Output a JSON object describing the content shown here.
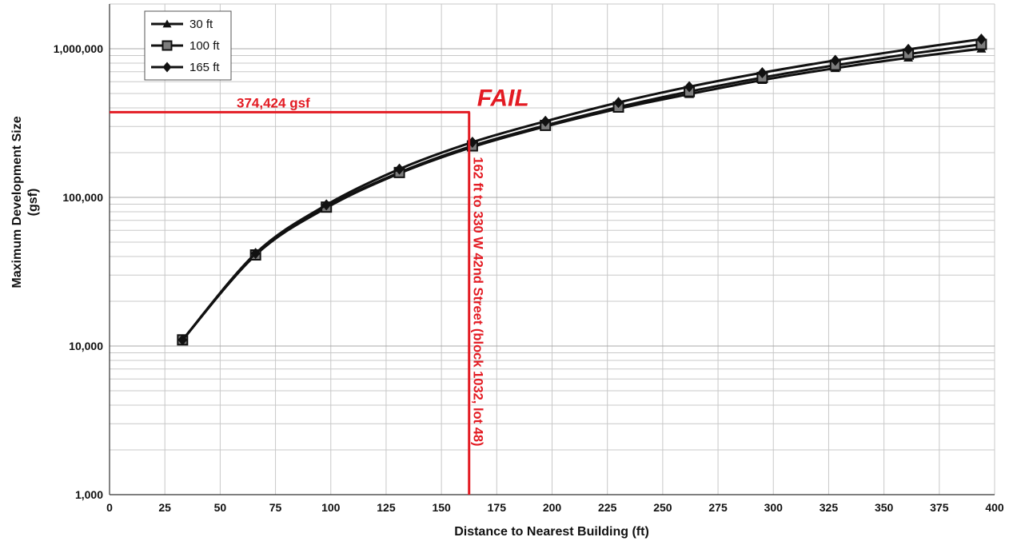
{
  "chart_data": {
    "type": "line",
    "title": "",
    "xlabel": "Distance to Nearest Building (ft)",
    "ylabel": "Maximum Development Size",
    "ylabel_unit": "(gsf)",
    "x_scale": "linear",
    "y_scale": "log",
    "xlim": [
      0,
      400
    ],
    "ylim": [
      1000,
      2000000
    ],
    "x_ticks": [
      0,
      25,
      50,
      75,
      100,
      125,
      150,
      175,
      200,
      225,
      250,
      275,
      300,
      325,
      350,
      375,
      400
    ],
    "x_tick_labels": [
      "0",
      "25",
      "50",
      "75",
      "100",
      "125",
      "150",
      "175",
      "200",
      "225",
      "250",
      "275",
      "300",
      "325",
      "350",
      "375",
      "400"
    ],
    "y_ticks": [
      1000,
      10000,
      100000,
      1000000
    ],
    "y_tick_labels": [
      "1,000",
      "10,000",
      "100,000",
      "1,000,000"
    ],
    "grid": true,
    "legend_position": "top-left",
    "x": [
      33,
      66,
      98,
      131,
      164,
      197,
      230,
      262,
      295,
      328,
      361,
      394
    ],
    "series": [
      {
        "name": "30 ft",
        "marker": "triangle",
        "values": [
          11000,
          41000,
          85000,
          145000,
          218000,
          300000,
          395000,
          495000,
          615000,
          740000,
          870000,
          1000000
        ]
      },
      {
        "name": "100 ft",
        "marker": "square",
        "values": [
          11000,
          41000,
          86000,
          147000,
          222000,
          305000,
          405000,
          515000,
          640000,
          775000,
          920000,
          1070000
        ]
      },
      {
        "name": "165 ft",
        "marker": "diamond",
        "values": [
          11000,
          42000,
          89000,
          155000,
          235000,
          325000,
          435000,
          555000,
          690000,
          835000,
          990000,
          1160000
        ]
      }
    ],
    "annotations": {
      "threshold_value": 374424,
      "threshold_label": "374,424 gsf",
      "distance_value": 162,
      "distance_label": "162 ft to 330 W 42nd Street (block 1032, lot 48)",
      "status_label": "FAIL"
    }
  },
  "colors": {
    "series": "#111111",
    "annotation": "#e31b23",
    "grid": "#c8c8c8",
    "axis": "#333333"
  }
}
